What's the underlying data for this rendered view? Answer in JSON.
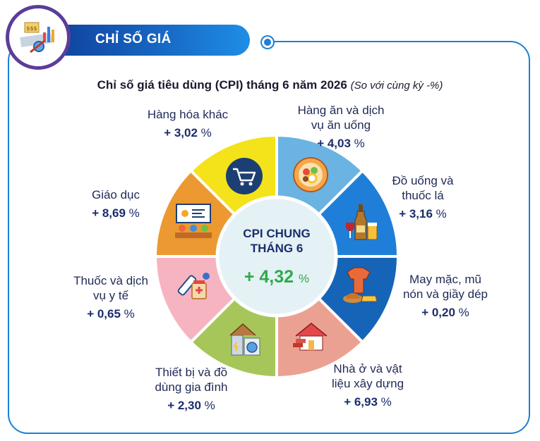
{
  "header": {
    "badge_label": "CHỈ SỐ GIÁ"
  },
  "chart_title": {
    "main": "Chỉ số giá tiêu dùng (CPI) tháng 6 năm 2026",
    "subtitle": "(So với cùng kỳ -%)"
  },
  "center": {
    "line1": "CPI CHUNG",
    "line2": "THÁNG 6",
    "value": "+ 4,32",
    "unit": "%"
  },
  "icons": [
    "cart-icon",
    "food-bowl-icon",
    "drinks-icon",
    "clothing-icon",
    "house-icon",
    "appliance-icon",
    "medicine-icon",
    "classroom-icon",
    "price-chart-logo-icon"
  ],
  "colors": {
    "hang_hoa_khac": "#f4e21a",
    "an_uong": "#6ab3e3",
    "do_uong": "#1f7fd8",
    "may_mac": "#1664b8",
    "nha_o": "#eba192",
    "thiet_bi": "#a7c65a",
    "thuoc": "#f6b4c0",
    "giao_duc": "#eb9930",
    "center": "#e4f1f5",
    "frame": "#1d7fd6",
    "positive_value": "#2faa4a"
  },
  "chart_data": {
    "type": "pie",
    "title": "Chỉ số giá tiêu dùng (CPI) tháng 6 năm 2026",
    "subtitle": "(So với cùng kỳ -%)",
    "center_label": "CPI CHUNG THÁNG 6",
    "center_value": 4.32,
    "categories": [
      "Hàng hóa khác",
      "Hàng ăn và dịch vụ ăn uống",
      "Đồ uống và thuốc lá",
      "May mặc, mũ nón và giầy dép",
      "Nhà ở và vật liệu xây dựng",
      "Thiết bị và đồ dùng gia đình",
      "Thuốc và dịch vụ y tế",
      "Giáo dục"
    ],
    "values": [
      3.02,
      4.03,
      3.16,
      0.2,
      6.93,
      2.3,
      0.65,
      8.69
    ],
    "labels": [
      {
        "lines": [
          "Hàng hóa khác"
        ],
        "value": "+ 3,02",
        "unit": "%"
      },
      {
        "lines": [
          "Hàng ăn và dịch",
          "vụ ăn uống"
        ],
        "value": "+ 4,03",
        "unit": "%"
      },
      {
        "lines": [
          "Đồ uống và",
          "thuốc lá"
        ],
        "value": "+ 3,16",
        "unit": "%"
      },
      {
        "lines": [
          "May mặc, mũ",
          "nón và giầy dép"
        ],
        "value": "+ 0,20",
        "unit": "%"
      },
      {
        "lines": [
          "Nhà ở và vật",
          "liệu xây dựng"
        ],
        "value": "+ 6,93",
        "unit": "%"
      },
      {
        "lines": [
          "Thiết bị và đồ",
          "dùng gia đình"
        ],
        "value": "+ 2,30",
        "unit": "%"
      },
      {
        "lines": [
          "Thuốc và dịch",
          "vụ y tế"
        ],
        "value": "+ 0,65",
        "unit": "%"
      },
      {
        "lines": [
          "Giáo dục"
        ],
        "value": "+ 8,69",
        "unit": "%"
      }
    ]
  }
}
